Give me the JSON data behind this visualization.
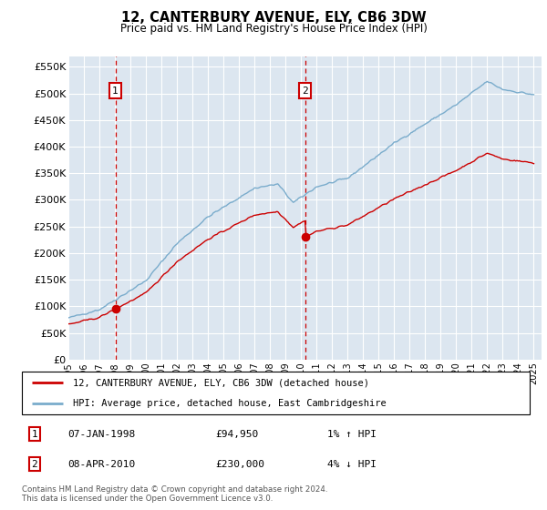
{
  "title": "12, CANTERBURY AVENUE, ELY, CB6 3DW",
  "subtitle": "Price paid vs. HM Land Registry's House Price Index (HPI)",
  "background_color": "#ffffff",
  "plot_bg_color": "#dce6f0",
  "grid_color": "#ffffff",
  "ylim": [
    0,
    570000
  ],
  "yticks": [
    0,
    50000,
    100000,
    150000,
    200000,
    250000,
    300000,
    350000,
    400000,
    450000,
    500000,
    550000
  ],
  "ytick_labels": [
    "£0",
    "£50K",
    "£100K",
    "£150K",
    "£200K",
    "£250K",
    "£300K",
    "£350K",
    "£400K",
    "£450K",
    "£500K",
    "£550K"
  ],
  "year_start": 1995,
  "year_end": 2025,
  "transaction1": {
    "date": "07-JAN-1998",
    "price": 94950,
    "hpi_note": "1% ↑ HPI",
    "label": "1",
    "year": 1998.03
  },
  "transaction2": {
    "date": "08-APR-2010",
    "price": 230000,
    "hpi_note": "4% ↓ HPI",
    "label": "2",
    "year": 2010.27
  },
  "legend_line1": "12, CANTERBURY AVENUE, ELY, CB6 3DW (detached house)",
  "legend_line2": "HPI: Average price, detached house, East Cambridgeshire",
  "footer_line1": "Contains HM Land Registry data © Crown copyright and database right 2024.",
  "footer_line2": "This data is licensed under the Open Government Licence v3.0.",
  "red_line_color": "#cc0000",
  "blue_line_color": "#7aaccc",
  "dashed_line_color": "#cc0000",
  "box_color": "#cc0000",
  "t1_price_label": "£94,950",
  "t2_price_label": "£230,000"
}
